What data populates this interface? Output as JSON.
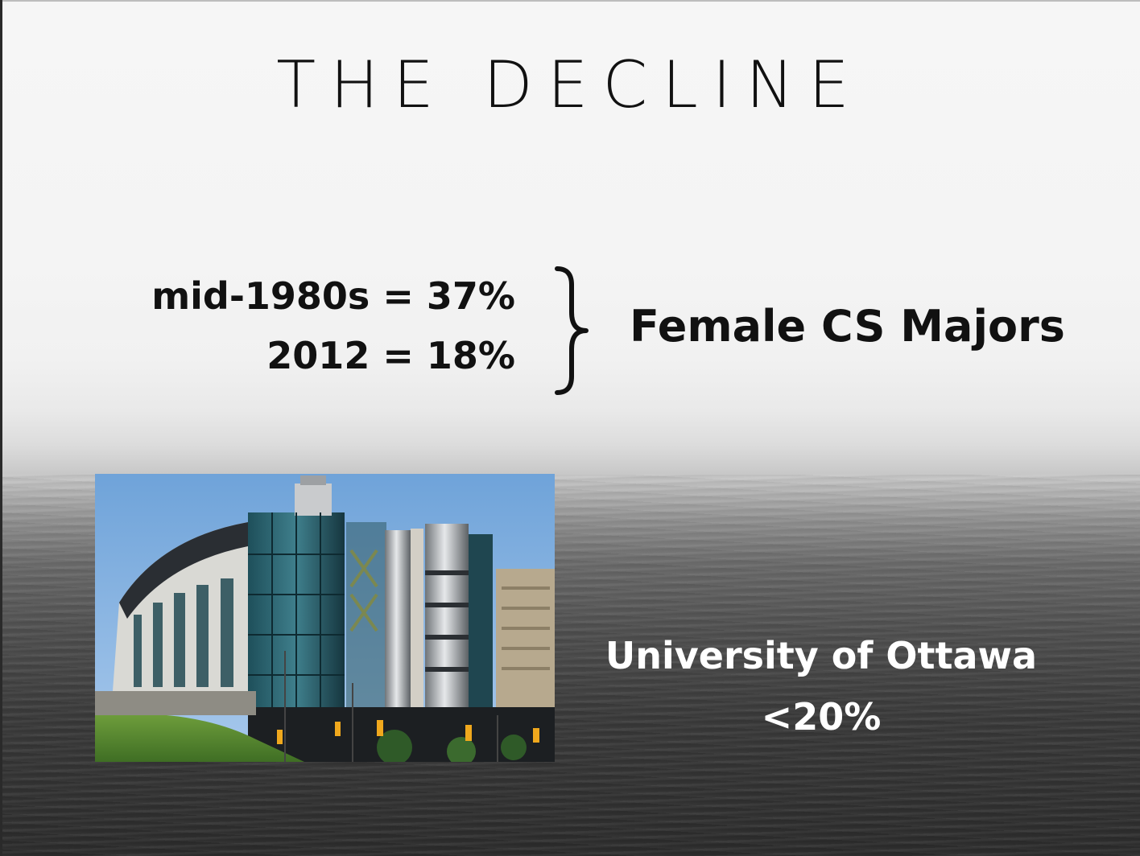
{
  "slide": {
    "title": "THE DECLINE",
    "stats": [
      {
        "text": "mid-1980s = 37%"
      },
      {
        "text": "2012 = 18%"
      }
    ],
    "label": "Female CS Majors",
    "university": {
      "name": "University of Ottawa",
      "percentage": "<20%"
    },
    "photo_subject": "university-building-photo"
  }
}
